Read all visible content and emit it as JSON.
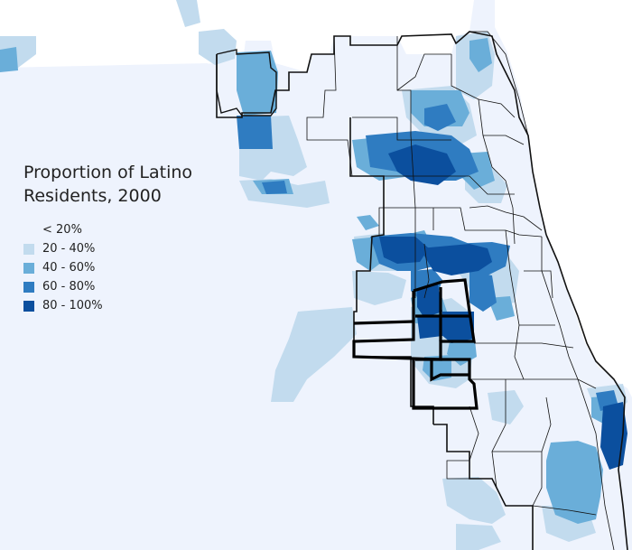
{
  "legend": {
    "title_line1": "Proportion of Latino",
    "title_line2": "Residents, 2000",
    "items": [
      {
        "label": "< 20%",
        "color": "#eef3fd"
      },
      {
        "label": "20 - 40%",
        "color": "#c2dbee"
      },
      {
        "label": "40 - 60%",
        "color": "#6aaed9"
      },
      {
        "label": "60 - 80%",
        "color": "#2f7cc1"
      },
      {
        "label": "80 - 100%",
        "color": "#0b4f9e"
      }
    ]
  },
  "colors": {
    "background": "#ffffff",
    "boundary": "#111111"
  }
}
